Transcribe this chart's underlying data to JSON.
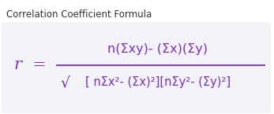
{
  "title": "Correlation Coefficient Formula",
  "title_color": "#333333",
  "title_fontsize": 8.5,
  "formula_color": "#7B2FBE",
  "bg_color": "#F2F2F7",
  "outer_bg": "#FFFFFF",
  "lhs": "r  =",
  "numerator": "n(Σxy)- (Σx)(Σy)",
  "denominator": "[ nΣx²- (Σx)²][nΣy²- (Σy)²]",
  "sqrt_char": "√",
  "formula_fontsize": 11.5,
  "lhs_fontsize": 15,
  "denom_fontsize": 10.5
}
